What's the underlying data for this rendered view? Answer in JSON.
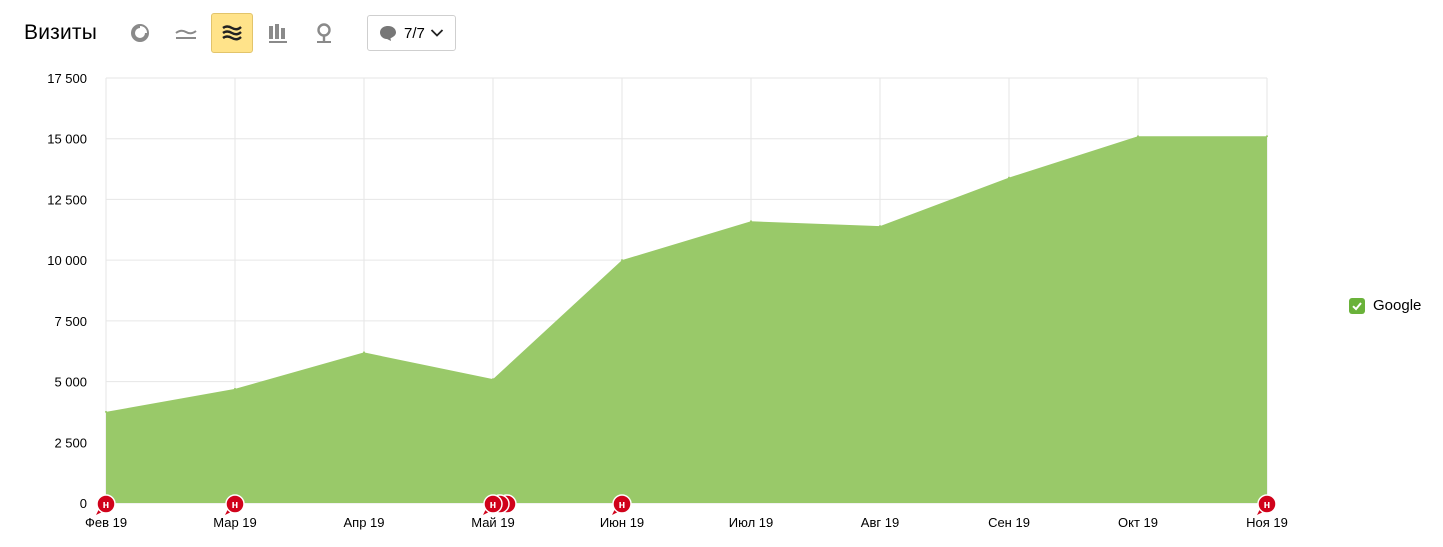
{
  "header": {
    "title": "Визиты",
    "notes_label": "7/7",
    "icons": [
      "pie-chart-icon",
      "line-chart-icon",
      "area-stack-icon",
      "bar-chart-icon",
      "map-pin-icon",
      "comment-icon",
      "chevron-down-icon"
    ],
    "active_view": "area-stack-icon"
  },
  "legend": {
    "label": "Google",
    "checked": true
  },
  "colors": {
    "area": "#99c969",
    "legend_box": "#6ab23a",
    "grid": "#e6e6e6",
    "marker": "#d0021b",
    "active_button": "#ffe38a"
  },
  "marker_letter": "н",
  "chart_data": {
    "type": "area",
    "title": "Визиты",
    "xlabel": "",
    "ylabel": "",
    "categories": [
      "Фев 19",
      "Мар 19",
      "Апр 19",
      "Май 19",
      "Июн 19",
      "Июл 19",
      "Авг 19",
      "Сен 19",
      "Окт 19",
      "Ноя 19"
    ],
    "series": [
      {
        "name": "Google",
        "values": [
          3750,
          4700,
          6200,
          5100,
          10000,
          11600,
          11400,
          13400,
          15100,
          15100
        ]
      }
    ],
    "ylim": [
      0,
      17500
    ],
    "yticks": [
      0,
      2500,
      5000,
      7500,
      10000,
      12500,
      15000,
      17500
    ],
    "ytick_labels": [
      "0",
      "2 500",
      "5 000",
      "7 500",
      "10 000",
      "12 500",
      "15 000",
      "17 500"
    ],
    "grid": true,
    "legend_position": "right",
    "annotations": [
      {
        "category": "Фев 19",
        "count": 1
      },
      {
        "category": "Мар 19",
        "count": 1
      },
      {
        "category": "Май 19",
        "count": 3
      },
      {
        "category": "Июн 19",
        "count": 1
      },
      {
        "category": "Ноя 19",
        "count": 1
      }
    ]
  }
}
